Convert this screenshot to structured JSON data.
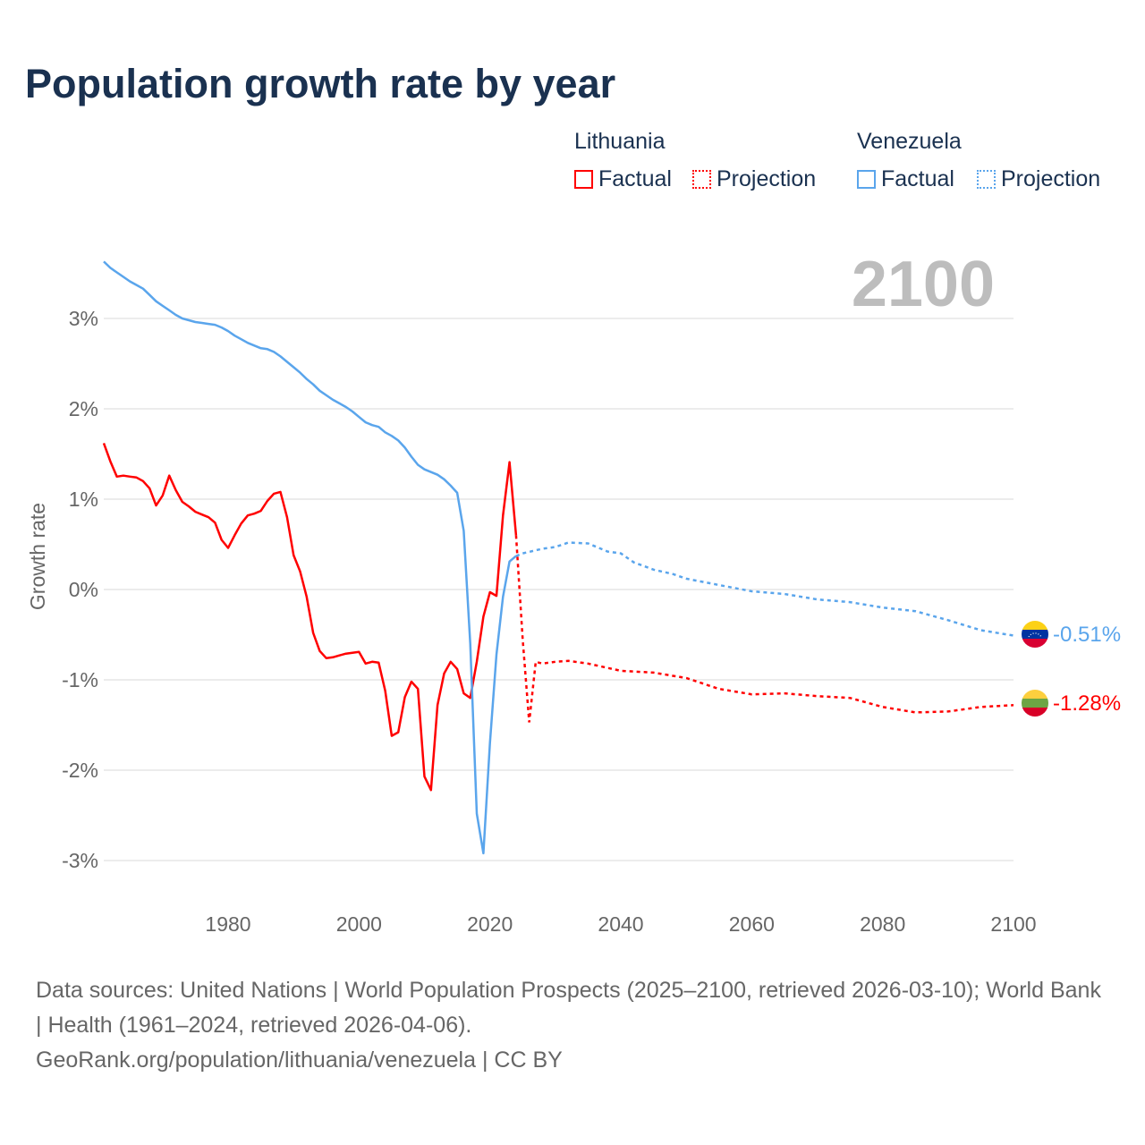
{
  "title": "Population growth rate by year",
  "legend": {
    "groups": [
      {
        "name": "Lithuania",
        "factual": "Factual",
        "projection": "Projection",
        "color": "#ff0000"
      },
      {
        "name": "Venezuela",
        "factual": "Factual",
        "projection": "Projection",
        "color": "#5aa5ec"
      }
    ]
  },
  "year_display": "2100",
  "source": {
    "line1": "Data sources: United Nations | World Population Prospects (2025–2100, retrieved 2026-03-10); World Bank | Health (1961–2024, retrieved 2026-04-06).",
    "line2": "GeoRank.org/population/lithuania/venezuela | CC BY"
  },
  "chart_data": {
    "type": "line",
    "title": "Population growth rate by year",
    "xlabel": "",
    "ylabel": "Growth rate",
    "xlim": [
      1961,
      2100
    ],
    "ylim": [
      -3.4,
      3.8
    ],
    "x_ticks": [
      {
        "v": 1980,
        "label": "1980"
      },
      {
        "v": 2000,
        "label": "2000"
      },
      {
        "v": 2020,
        "label": "2020"
      },
      {
        "v": 2040,
        "label": "2040"
      },
      {
        "v": 2060,
        "label": "2060"
      },
      {
        "v": 2080,
        "label": "2080"
      },
      {
        "v": 2100,
        "label": "2100"
      }
    ],
    "y_ticks": [
      {
        "v": 3,
        "label": "3%"
      },
      {
        "v": 2,
        "label": "2%"
      },
      {
        "v": 1,
        "label": "1%"
      },
      {
        "v": 0,
        "label": "0%"
      },
      {
        "v": -1,
        "label": "-1%"
      },
      {
        "v": -2,
        "label": "-2%"
      },
      {
        "v": -3,
        "label": "-3%"
      }
    ],
    "grid": true,
    "series": [
      {
        "name": "Lithuania",
        "color": "#ff0000",
        "end_label": "-1.28%",
        "factual": {
          "x": [
            1961,
            1962,
            1963,
            1964,
            1965,
            1966,
            1967,
            1968,
            1969,
            1970,
            1971,
            1972,
            1973,
            1974,
            1975,
            1976,
            1977,
            1978,
            1979,
            1980,
            1981,
            1982,
            1983,
            1984,
            1985,
            1986,
            1987,
            1988,
            1989,
            1990,
            1991,
            1992,
            1993,
            1994,
            1995,
            1996,
            1997,
            1998,
            1999,
            2000,
            2001,
            2002,
            2003,
            2004,
            2005,
            2006,
            2007,
            2008,
            2009,
            2010,
            2011,
            2012,
            2013,
            2014,
            2015,
            2016,
            2017,
            2018,
            2019,
            2020,
            2021,
            2022,
            2023,
            2024
          ],
          "y": [
            1.62,
            1.42,
            1.25,
            1.26,
            1.25,
            1.24,
            1.2,
            1.12,
            0.93,
            1.04,
            1.26,
            1.1,
            0.97,
            0.92,
            0.86,
            0.83,
            0.8,
            0.74,
            0.55,
            0.46,
            0.6,
            0.73,
            0.82,
            0.84,
            0.87,
            0.98,
            1.06,
            1.08,
            0.8,
            0.38,
            0.2,
            -0.08,
            -0.48,
            -0.68,
            -0.76,
            -0.75,
            -0.73,
            -0.71,
            -0.7,
            -0.69,
            -0.82,
            -0.8,
            -0.81,
            -1.12,
            -1.62,
            -1.58,
            -1.19,
            -1.02,
            -1.1,
            -2.07,
            -2.22,
            -1.28,
            -0.93,
            -0.8,
            -0.88,
            -1.15,
            -1.2,
            -0.8,
            -0.3,
            -0.03,
            -0.07,
            0.82,
            1.41,
            0.6
          ]
        },
        "projection": {
          "x": [
            2024,
            2025,
            2026,
            2027,
            2028,
            2030,
            2032,
            2035,
            2040,
            2045,
            2050,
            2055,
            2060,
            2065,
            2070,
            2075,
            2080,
            2085,
            2090,
            2095,
            2100
          ],
          "y": [
            0.6,
            -0.55,
            -1.47,
            -0.8,
            -0.82,
            -0.8,
            -0.79,
            -0.82,
            -0.9,
            -0.92,
            -0.98,
            -1.1,
            -1.16,
            -1.15,
            -1.18,
            -1.2,
            -1.3,
            -1.36,
            -1.35,
            -1.3,
            -1.28
          ]
        }
      },
      {
        "name": "Venezuela",
        "color": "#5aa5ec",
        "end_label": "-0.51%",
        "factual": {
          "x": [
            1961,
            1962,
            1963,
            1964,
            1965,
            1966,
            1967,
            1968,
            1969,
            1970,
            1971,
            1972,
            1973,
            1974,
            1975,
            1976,
            1977,
            1978,
            1979,
            1980,
            1981,
            1982,
            1983,
            1984,
            1985,
            1986,
            1987,
            1988,
            1989,
            1990,
            1991,
            1992,
            1993,
            1994,
            1995,
            1996,
            1997,
            1998,
            1999,
            2000,
            2001,
            2002,
            2003,
            2004,
            2005,
            2006,
            2007,
            2008,
            2009,
            2010,
            2011,
            2012,
            2013,
            2014,
            2015,
            2016,
            2017,
            2018,
            2019,
            2020,
            2021,
            2022,
            2023,
            2024
          ],
          "y": [
            3.63,
            3.56,
            3.51,
            3.46,
            3.41,
            3.37,
            3.33,
            3.26,
            3.19,
            3.14,
            3.09,
            3.04,
            3.0,
            2.98,
            2.96,
            2.95,
            2.94,
            2.93,
            2.9,
            2.86,
            2.81,
            2.77,
            2.73,
            2.7,
            2.67,
            2.66,
            2.63,
            2.58,
            2.52,
            2.46,
            2.4,
            2.33,
            2.27,
            2.2,
            2.15,
            2.1,
            2.06,
            2.02,
            1.97,
            1.91,
            1.85,
            1.82,
            1.8,
            1.74,
            1.7,
            1.65,
            1.57,
            1.47,
            1.38,
            1.33,
            1.3,
            1.27,
            1.22,
            1.15,
            1.07,
            0.65,
            -0.6,
            -2.48,
            -2.92,
            -1.7,
            -0.72,
            -0.08,
            0.31,
            0.37
          ]
        },
        "projection": {
          "x": [
            2024,
            2025,
            2028,
            2030,
            2032,
            2035,
            2038,
            2040,
            2042,
            2045,
            2048,
            2050,
            2055,
            2060,
            2065,
            2070,
            2075,
            2080,
            2085,
            2090,
            2095,
            2100
          ],
          "y": [
            0.37,
            0.4,
            0.45,
            0.47,
            0.52,
            0.51,
            0.42,
            0.4,
            0.3,
            0.22,
            0.17,
            0.12,
            0.05,
            -0.02,
            -0.05,
            -0.11,
            -0.14,
            -0.2,
            -0.24,
            -0.34,
            -0.45,
            -0.51
          ]
        }
      }
    ]
  }
}
